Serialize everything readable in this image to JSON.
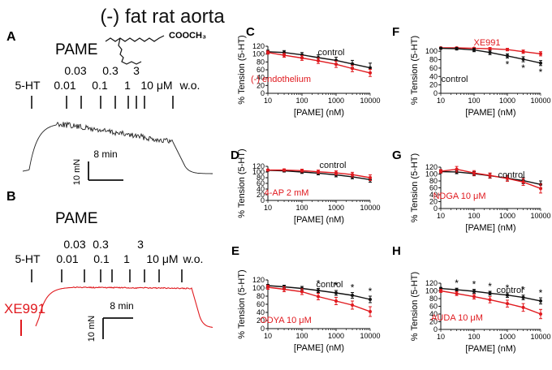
{
  "title": "(-) fat rat aorta",
  "colors": {
    "control": "#111111",
    "treatment": "#e0191e"
  },
  "panel_A": {
    "letter": "A",
    "drug": "PAME",
    "chem_label": "COOCH₃",
    "agonist": "5-HT",
    "conc_top": [
      "0.03",
      "0.3",
      "3"
    ],
    "conc_bottom": [
      "0.01",
      "0.1",
      "1",
      "10 μM"
    ],
    "washout": "w.o.",
    "time_scale": "8 min",
    "force_scale": "10 mN"
  },
  "panel_B": {
    "letter": "B",
    "drug": "PAME",
    "agonist": "5-HT",
    "conc_top": [
      "0.03",
      "0.3",
      "3"
    ],
    "conc_bottom": [
      "0.01",
      "0.1",
      "1",
      "10 μM"
    ],
    "washout": "w.o.",
    "trace_label": "XE991",
    "time_scale": "8 min",
    "force_scale": "10 mN"
  },
  "chart_data": [
    {
      "id": "C",
      "type": "line",
      "title": "C",
      "xlabel": "[PAME] (nM)",
      "ylabel": "% Tension (5-HT)",
      "x": [
        10,
        30,
        100,
        300,
        1000,
        3000,
        10000
      ],
      "xscale": "log",
      "xlim": [
        10,
        10000
      ],
      "xticks": [
        "10",
        "100",
        "1000",
        "10000"
      ],
      "ylim": [
        0,
        120
      ],
      "yticks": [
        "0",
        "20",
        "40",
        "60",
        "80",
        "100",
        "120"
      ],
      "series": [
        {
          "name": "control",
          "color": "#111111",
          "values": [
            106,
            104,
            98,
            91,
            84,
            75,
            65
          ],
          "err": [
            4,
            5,
            6,
            7,
            8,
            9,
            12
          ]
        },
        {
          "name": "(-) endothelium",
          "color": "#e0191e",
          "values": [
            104,
            97,
            90,
            83,
            74,
            63,
            52
          ],
          "err": [
            4,
            5,
            6,
            7,
            8,
            8,
            9
          ]
        }
      ],
      "labels": [
        "control",
        "(-) endothelium"
      ],
      "significance": []
    },
    {
      "id": "D",
      "type": "line",
      "title": "D",
      "xlabel": "[PAME] (nM)",
      "ylabel": "% Tension (5-HT)",
      "x": [
        10,
        30,
        100,
        300,
        1000,
        3000,
        10000
      ],
      "xscale": "log",
      "xlim": [
        10,
        10000
      ],
      "xticks": [
        "10",
        "100",
        "1000",
        "10000"
      ],
      "ylim": [
        0,
        120
      ],
      "yticks": [
        "0",
        "20",
        "40",
        "60",
        "80",
        "100",
        "120"
      ],
      "series": [
        {
          "name": "control",
          "color": "#111111",
          "values": [
            106,
            104,
            100,
            96,
            90,
            83,
            73
          ],
          "err": [
            3,
            4,
            5,
            6,
            7,
            7,
            9
          ]
        },
        {
          "name": "4-AP 2 mM",
          "color": "#e0191e",
          "values": [
            107,
            107,
            105,
            101,
            97,
            91,
            80
          ],
          "err": [
            3,
            4,
            5,
            6,
            7,
            8,
            10
          ]
        }
      ],
      "labels": [
        "control",
        "4-AP 2 mM"
      ],
      "significance": []
    },
    {
      "id": "E",
      "type": "line",
      "title": "E",
      "xlabel": "[PAME] (nM)",
      "ylabel": "% Tension (5-HT)",
      "x": [
        10,
        30,
        100,
        300,
        1000,
        3000,
        10000
      ],
      "xscale": "log",
      "xlim": [
        10,
        10000
      ],
      "xticks": [
        "10",
        "100",
        "1000",
        "10000"
      ],
      "ylim": [
        0,
        120
      ],
      "yticks": [
        "0",
        "20",
        "40",
        "60",
        "80",
        "100",
        "120"
      ],
      "series": [
        {
          "name": "control",
          "color": "#111111",
          "values": [
            106,
            103,
            99,
            94,
            88,
            82,
            72
          ],
          "err": [
            3,
            4,
            5,
            5,
            6,
            7,
            8
          ]
        },
        {
          "name": "ODYA 10 μM",
          "color": "#e0191e",
          "values": [
            102,
            97,
            91,
            79,
            68,
            58,
            42
          ],
          "err": [
            5,
            6,
            7,
            8,
            9,
            10,
            12
          ]
        }
      ],
      "labels": [
        "control",
        "ODYA  10 μM"
      ],
      "significance": [
        "*",
        "*",
        "*",
        "*",
        "*"
      ],
      "sig_x": [
        300,
        1000,
        1000,
        3000,
        10000
      ]
    },
    {
      "id": "F",
      "type": "line",
      "title": "F",
      "xlabel": "[PAME] (nM)",
      "ylabel": "% Tension (5-HT)",
      "x": [
        10,
        30,
        100,
        300,
        1000,
        3000,
        10000
      ],
      "xscale": "log",
      "xlim": [
        10,
        10000
      ],
      "xticks": [
        "10",
        "100",
        "1000",
        "10000"
      ],
      "ylim": [
        0,
        110
      ],
      "yticks": [
        "0",
        "20",
        "40",
        "60",
        "80",
        "100"
      ],
      "series": [
        {
          "name": "XE991",
          "color": "#e0191e",
          "values": [
            108,
            108,
            107,
            106,
            104,
            99,
            94
          ],
          "err": [
            2,
            2,
            2,
            3,
            3,
            4,
            5
          ]
        },
        {
          "name": "control",
          "color": "#111111",
          "values": [
            107,
            106,
            103,
            97,
            89,
            81,
            72
          ],
          "err": [
            2,
            3,
            4,
            5,
            5,
            6,
            6
          ]
        }
      ],
      "labels": [
        "XE991",
        "control"
      ],
      "significance": [
        "*",
        "*",
        "*"
      ],
      "sig_x": [
        1000,
        3000,
        10000
      ]
    },
    {
      "id": "G",
      "type": "line",
      "title": "G",
      "xlabel": "[PAME] (nM)",
      "ylabel": "% Tension (5-HT)",
      "x": [
        10,
        30,
        100,
        300,
        1000,
        3000,
        10000
      ],
      "xscale": "log",
      "xlim": [
        10,
        10000
      ],
      "xticks": [
        "10",
        "100",
        "1000",
        "10000"
      ],
      "ylim": [
        0,
        120
      ],
      "yticks": [
        "0",
        "20",
        "40",
        "60",
        "80",
        "100",
        "120"
      ],
      "series": [
        {
          "name": "control",
          "color": "#111111",
          "values": [
            107,
            106,
            101,
            95,
            88,
            81,
            70
          ],
          "err": [
            4,
            5,
            6,
            7,
            8,
            9,
            10
          ]
        },
        {
          "name": "NDGA 10 μM",
          "color": "#e0191e",
          "values": [
            108,
            114,
            103,
            96,
            87,
            77,
            58
          ],
          "err": [
            5,
            8,
            7,
            7,
            8,
            10,
            13
          ]
        }
      ],
      "labels": [
        "control",
        "NDGA 10 μM"
      ],
      "significance": []
    },
    {
      "id": "H",
      "type": "line",
      "title": "H",
      "xlabel": "[PAME] (nM)",
      "ylabel": "% Tension (5-HT)",
      "x": [
        10,
        30,
        100,
        300,
        1000,
        3000,
        10000
      ],
      "xscale": "log",
      "xlim": [
        10,
        10000
      ],
      "xticks": [
        "10",
        "100",
        "1000",
        "10000"
      ],
      "ylim": [
        0,
        120
      ],
      "yticks": [
        "0",
        "20",
        "40",
        "60",
        "80",
        "100",
        "120"
      ],
      "series": [
        {
          "name": "control",
          "color": "#111111",
          "values": [
            106,
            103,
            99,
            94,
            89,
            83,
            74
          ],
          "err": [
            3,
            4,
            5,
            5,
            6,
            6,
            8
          ]
        },
        {
          "name": "AUDA 10 μM",
          "color": "#e0191e",
          "values": [
            100,
            93,
            85,
            77,
            67,
            57,
            40
          ],
          "err": [
            4,
            5,
            6,
            8,
            9,
            10,
            12
          ]
        }
      ],
      "labels": [
        "control",
        "AUDA 10 μM"
      ],
      "significance": [
        "*",
        "*",
        "*",
        "*",
        "*",
        "*"
      ],
      "sig_x": [
        30,
        100,
        300,
        1000,
        3000,
        10000
      ]
    }
  ]
}
